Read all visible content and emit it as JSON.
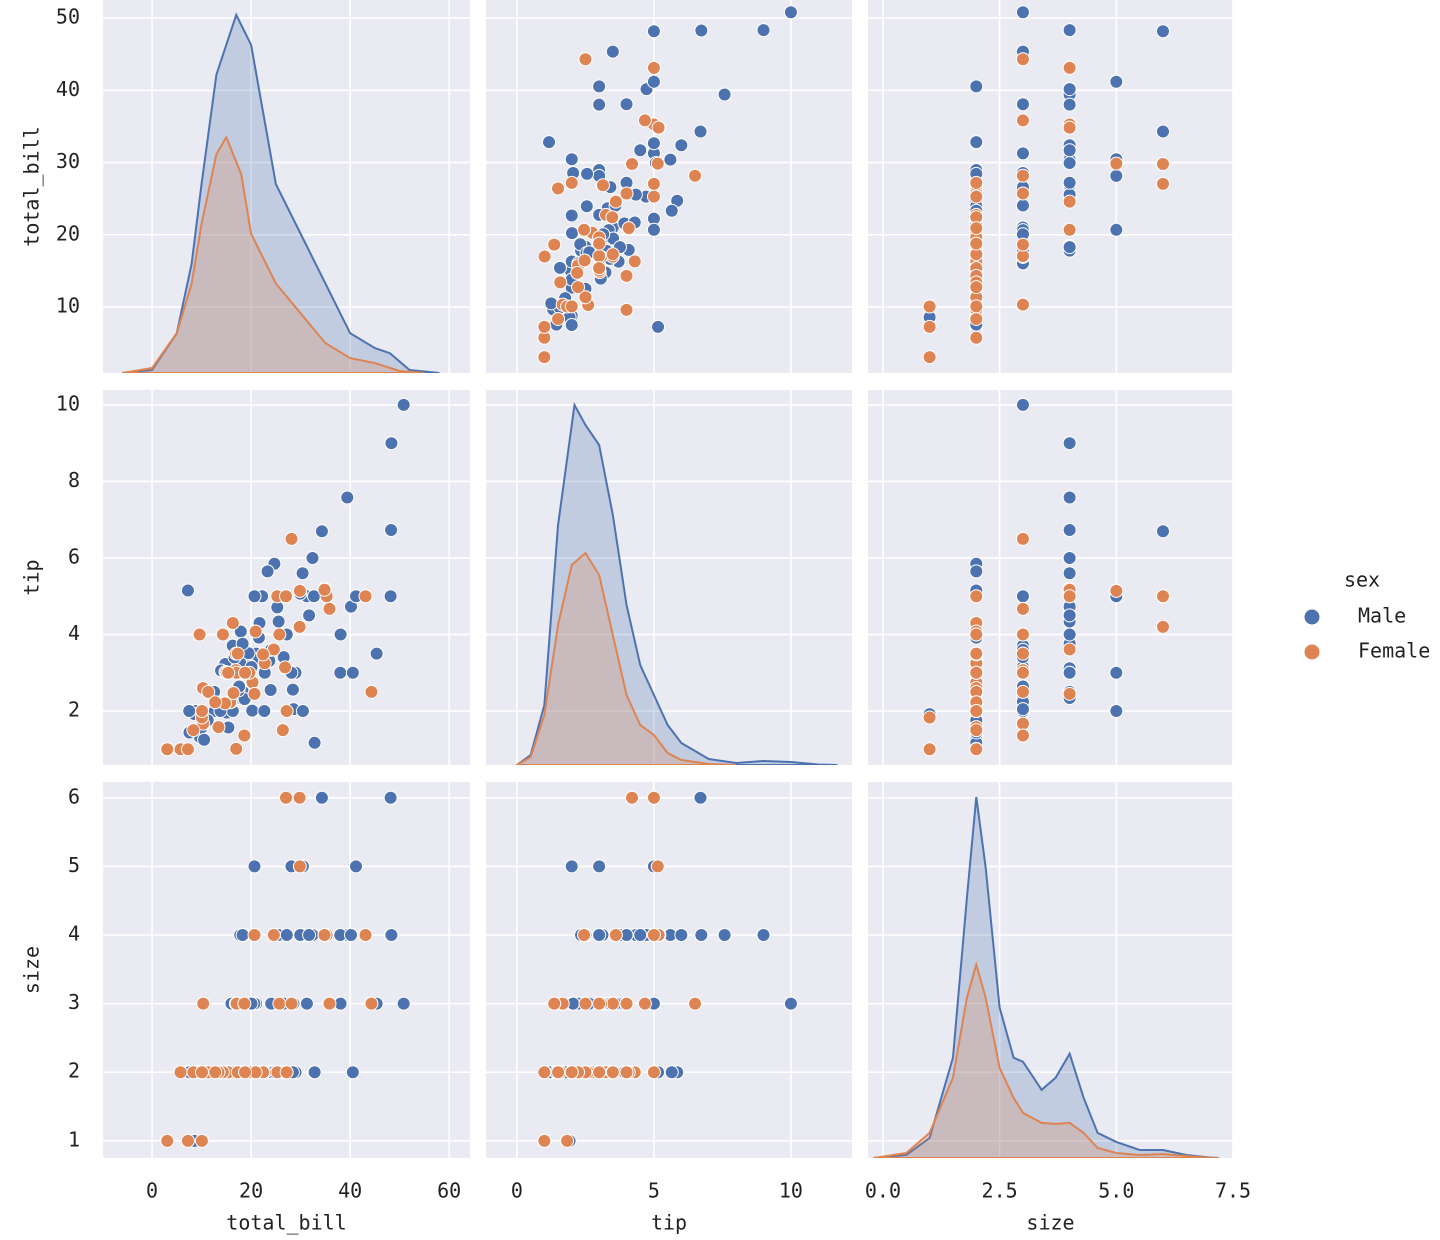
{
  "chart_data": {
    "type": "pairplot",
    "grid": true,
    "legend": {
      "title": "sex",
      "corner": "right"
    },
    "variables": [
      {
        "name": "total_bill",
        "xlim": [
          -9.9,
          64.2
        ],
        "ylim": [
          0.87,
          52.5
        ],
        "xticks": [
          0,
          20,
          40,
          60
        ],
        "yticks": [
          10,
          20,
          30,
          40,
          50
        ]
      },
      {
        "name": "tip",
        "xlim": [
          -1.13,
          12.23
        ],
        "ylim": [
          0.59,
          10.39
        ],
        "xticks": [
          0,
          5,
          10
        ],
        "yticks": [
          2,
          4,
          6,
          8,
          10
        ]
      },
      {
        "name": "size",
        "xlim": [
          -0.32,
          7.5
        ],
        "ylim": [
          0.75,
          6.23
        ],
        "xticks": [
          {
            "value": 0,
            "label": "0.0"
          },
          2.5,
          {
            "value": 5,
            "label": "5.0"
          },
          7.5
        ],
        "yticks": [
          1,
          2,
          3,
          4,
          5,
          6
        ]
      }
    ],
    "series": [
      {
        "name": "Male",
        "color": "#4c72b0",
        "total_bill": [
          10.34,
          21.01,
          23.68,
          25.29,
          8.77,
          26.88,
          15.04,
          14.78,
          10.27,
          15.42,
          18.43,
          21.58,
          16.29,
          20.65,
          17.92,
          39.42,
          19.82,
          17.81,
          13.37,
          12.69,
          21.7,
          9.55,
          18.35,
          17.78,
          24.06,
          16.31,
          18.69,
          31.27,
          16.04,
          17.46,
          13.94,
          9.68,
          30.4,
          22.23,
          32.4,
          28.55,
          12.54,
          9.94,
          25.56,
          19.49,
          38.01,
          11.24,
          48.27,
          13.81,
          18.29,
          17.59,
          20.08,
          20.23,
          10.51,
          27.2,
          22.76,
          16.66,
          32.68,
          24.71,
          28.97,
          40.17,
          38.07,
          23.95,
          29.93,
          50.81,
          48.33,
          48.17,
          34.3,
          41.19,
          30.46,
          28.15,
          20.69,
          7.25,
          32.83,
          45.35,
          8.58,
          7.51,
          31.71,
          40.55,
          7.56,
          22.67,
          23.33,
          28.44,
          26.59
        ],
        "tip": [
          1.66,
          3.5,
          3.31,
          4.71,
          2.0,
          3.12,
          1.96,
          3.23,
          1.71,
          1.57,
          3.0,
          3.92,
          3.71,
          3.35,
          4.08,
          7.58,
          3.18,
          2.34,
          2.0,
          2.0,
          4.3,
          1.45,
          2.5,
          3.27,
          3.6,
          2.0,
          2.31,
          5.0,
          2.24,
          2.54,
          3.06,
          1.32,
          5.6,
          5.0,
          6.0,
          2.05,
          2.5,
          1.56,
          4.34,
          3.51,
          3.0,
          1.76,
          6.73,
          2.0,
          3.76,
          2.64,
          3.15,
          2.01,
          1.25,
          4.0,
          3.0,
          3.4,
          5.0,
          5.85,
          3.0,
          4.73,
          4.0,
          2.55,
          5.07,
          10.0,
          9.0,
          5.0,
          6.7,
          5.0,
          2.0,
          3.0,
          5.0,
          5.15,
          1.17,
          3.5,
          1.92,
          2.0,
          4.5,
          3.0,
          1.44,
          2.0,
          5.65,
          2.56,
          3.41
        ],
        "size": [
          3,
          3,
          2,
          4,
          2,
          4,
          2,
          2,
          2,
          2,
          4,
          2,
          3,
          3,
          2,
          4,
          2,
          4,
          2,
          2,
          2,
          2,
          4,
          2,
          3,
          3,
          3,
          3,
          3,
          2,
          2,
          2,
          4,
          2,
          4,
          3,
          2,
          2,
          4,
          2,
          4,
          2,
          4,
          2,
          4,
          3,
          3,
          2,
          2,
          4,
          2,
          2,
          2,
          2,
          2,
          4,
          3,
          2,
          4,
          3,
          4,
          6,
          6,
          5,
          5,
          5,
          5,
          2,
          2,
          3,
          1,
          2,
          4,
          2,
          2,
          2,
          2,
          2,
          3
        ],
        "kde": {
          "total_bill": {
            "x": [
              -6,
              0,
              5,
              8,
              10,
              13,
              17,
              20,
              25,
              30,
              35,
              40,
              45,
              48,
              52,
              58
            ],
            "density": [
              0,
              0.0003,
              0.004,
              0.011,
              0.019,
              0.03,
              0.036,
              0.033,
              0.019,
              0.014,
              0.009,
              0.004,
              0.0025,
              0.002,
              0.0003,
              0
            ]
          },
          "tip": {
            "x": [
              0,
              0.5,
              1,
              1.5,
              2.1,
              2.5,
              3,
              3.5,
              4,
              4.5,
              5,
              5.5,
              6,
              7,
              8,
              9,
              10,
              11,
              11.7
            ],
            "density": [
              0,
              0.01,
              0.06,
              0.24,
              0.36,
              0.34,
              0.32,
              0.25,
              0.16,
              0.1,
              0.07,
              0.04,
              0.022,
              0.006,
              0.002,
              0.004,
              0.003,
              0.0005,
              0
            ]
          },
          "size": {
            "x": [
              -0.2,
              0.5,
              1,
              1.5,
              1.8,
              2,
              2.2,
              2.5,
              2.8,
              3,
              3.4,
              3.7,
              4,
              4.3,
              4.6,
              5,
              5.5,
              6,
              6.5,
              7,
              7.2
            ],
            "density": [
              0,
              0.003,
              0.02,
              0.1,
              0.26,
              0.36,
              0.29,
              0.15,
              0.1,
              0.096,
              0.068,
              0.08,
              0.104,
              0.06,
              0.025,
              0.016,
              0.008,
              0.008,
              0.003,
              0.0005,
              0
            ]
          }
        }
      },
      {
        "name": "Female",
        "color": "#dd8452",
        "total_bill": [
          16.99,
          24.59,
          35.26,
          14.83,
          10.33,
          16.97,
          20.29,
          15.77,
          19.65,
          15.06,
          20.69,
          16.93,
          10.29,
          34.81,
          26.41,
          16.45,
          3.07,
          17.07,
          26.86,
          25.28,
          14.73,
          10.07,
          34.83,
          5.75,
          16.32,
          22.75,
          11.35,
          15.38,
          44.3,
          22.42,
          20.92,
          14.31,
          7.25,
          25.71,
          17.31,
          29.8,
          27.05,
          29.85,
          43.11,
          9.6,
          28.17,
          18.78,
          13.42,
          8.35,
          18.64,
          12.76,
          35.83,
          27.18,
          10.09
        ],
        "tip": [
          1.01,
          3.61,
          5.0,
          3.02,
          1.67,
          3.5,
          2.75,
          2.23,
          3.0,
          3.0,
          2.45,
          3.07,
          2.6,
          5.2,
          1.5,
          2.47,
          1.0,
          3.0,
          3.14,
          5.0,
          2.2,
          1.83,
          5.17,
          1.0,
          4.3,
          3.25,
          2.5,
          3.0,
          2.5,
          3.48,
          4.08,
          4.0,
          1.0,
          4.0,
          3.5,
          4.2,
          5.0,
          5.14,
          5.0,
          4.0,
          6.5,
          3.0,
          1.58,
          1.5,
          1.36,
          2.23,
          4.67,
          2.0,
          2.0
        ],
        "size": [
          2,
          4,
          4,
          2,
          3,
          3,
          2,
          2,
          2,
          2,
          4,
          3,
          2,
          4,
          2,
          2,
          1,
          3,
          2,
          2,
          2,
          1,
          4,
          2,
          2,
          2,
          2,
          2,
          3,
          2,
          2,
          2,
          1,
          3,
          2,
          6,
          6,
          5,
          4,
          2,
          3,
          2,
          2,
          2,
          3,
          2,
          3,
          2,
          2
        ],
        "kde": {
          "total_bill": {
            "x": [
              -6,
              0,
              5,
              8,
              10,
              13,
              15,
              18,
              20,
              25,
              30,
              35,
              40,
              45,
              50,
              55
            ],
            "density": [
              0,
              0.0005,
              0.004,
              0.009,
              0.015,
              0.022,
              0.0237,
              0.02,
              0.014,
              0.009,
              0.006,
              0.003,
              0.0015,
              0.001,
              0.0002,
              0
            ]
          },
          "tip": {
            "x": [
              0,
              0.5,
              1,
              1.5,
              2,
              2.5,
              3,
              3.5,
              4,
              4.5,
              5,
              5.5,
              6,
              7,
              8
            ],
            "density": [
              0,
              0.008,
              0.05,
              0.14,
              0.2,
              0.212,
              0.19,
              0.13,
              0.07,
              0.04,
              0.03,
              0.012,
              0.005,
              0.001,
              0
            ]
          },
          "size": {
            "x": [
              -0.2,
              0.5,
              1,
              1.5,
              1.8,
              2,
              2.2,
              2.5,
              2.8,
              3,
              3.4,
              3.7,
              4,
              4.3,
              4.6,
              5,
              5.5,
              6,
              6.5,
              7,
              7.2
            ],
            "density": [
              0,
              0.005,
              0.025,
              0.08,
              0.16,
              0.193,
              0.16,
              0.09,
              0.06,
              0.045,
              0.035,
              0.034,
              0.035,
              0.025,
              0.01,
              0.005,
              0.003,
              0.004,
              0.002,
              0.0003,
              0
            ]
          }
        }
      }
    ]
  }
}
